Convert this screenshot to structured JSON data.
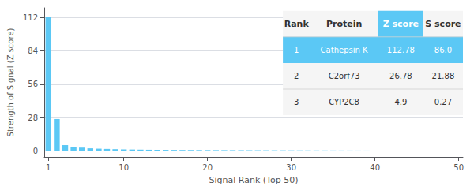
{
  "chart_data": {
    "type": "bar",
    "xlabel": "Signal Rank (Top 50)",
    "ylabel": "Strength of Signal (Z score)",
    "categories": [
      "1",
      null,
      null,
      null,
      null,
      null,
      null,
      null,
      null,
      "10",
      null,
      null,
      null,
      null,
      null,
      null,
      null,
      null,
      null,
      "20",
      null,
      null,
      null,
      null,
      null,
      null,
      null,
      null,
      null,
      "30",
      null,
      null,
      null,
      null,
      null,
      null,
      null,
      null,
      null,
      "40",
      null,
      null,
      null,
      null,
      null,
      null,
      null,
      null,
      null,
      "50"
    ],
    "values": [
      112.78,
      26.78,
      4.9,
      3.5,
      2.8,
      2.2,
      1.9,
      1.7,
      1.5,
      1.3,
      1.2,
      1.1,
      1.0,
      0.95,
      0.9,
      0.85,
      0.8,
      0.78,
      0.75,
      0.72,
      0.7,
      0.68,
      0.65,
      0.63,
      0.61,
      0.59,
      0.57,
      0.55,
      0.53,
      0.51,
      0.49,
      0.47,
      0.45,
      0.43,
      0.41,
      0.39,
      0.37,
      0.35,
      0.33,
      0.31,
      0.29,
      0.27,
      0.25,
      0.23,
      0.21,
      0.19,
      0.17,
      0.15,
      0.13,
      0.11
    ],
    "color": "#5bc8f5",
    "ylim": [
      -5,
      120
    ],
    "yticks": [
      0,
      28,
      56,
      84,
      112
    ],
    "grid": true,
    "table": {
      "columns": [
        "Rank",
        "Protein",
        "Z score",
        "S score"
      ],
      "rows": [
        [
          "1",
          "Cathepsin K",
          "112.78",
          "86.0"
        ],
        [
          "2",
          "C2orf73",
          "26.78",
          "21.88"
        ],
        [
          "3",
          "CYP2C8",
          "4.9",
          "0.27"
        ]
      ],
      "highlight_row": 0,
      "highlight_column": 2
    }
  }
}
